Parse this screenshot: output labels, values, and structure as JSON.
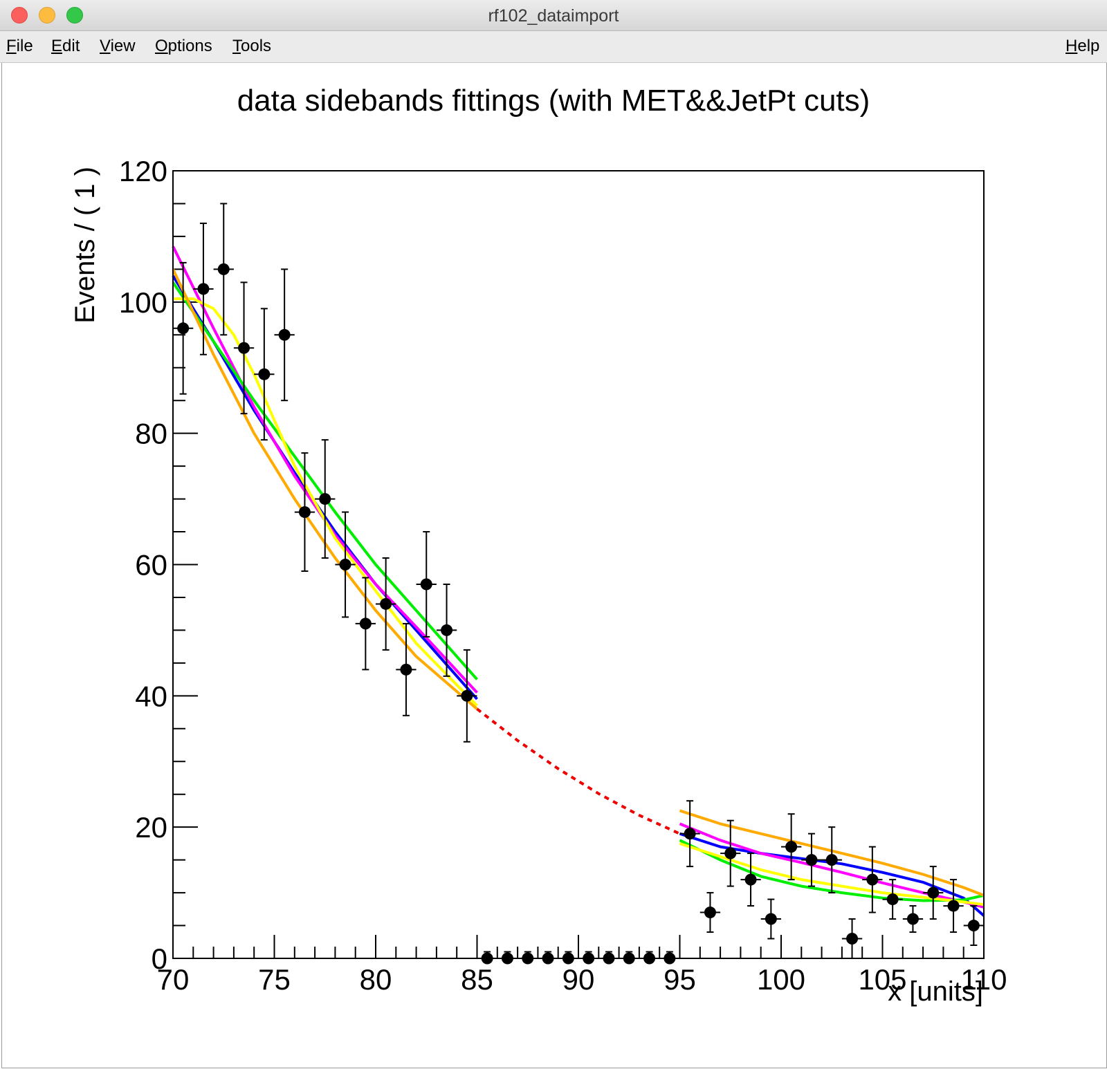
{
  "window": {
    "title": "rf102_dataimport"
  },
  "menu": {
    "file": "File",
    "edit": "Edit",
    "view": "View",
    "options": "Options",
    "tools": "Tools",
    "help": "Help"
  },
  "chart_data": {
    "type": "scatter",
    "title": "data sidebands fittings (with MET&&JetPt cuts)",
    "xlabel": "x [units]",
    "ylabel": "Events / ( 1 )",
    "xlim": [
      70,
      110
    ],
    "ylim": [
      0,
      120
    ],
    "x_ticks": [
      70,
      75,
      80,
      85,
      90,
      95,
      100,
      105,
      110
    ],
    "y_ticks": [
      0,
      20,
      40,
      60,
      80,
      100,
      120
    ],
    "grid": false,
    "data": {
      "x": [
        70.5,
        71.5,
        72.5,
        73.5,
        74.5,
        75.5,
        76.5,
        77.5,
        78.5,
        79.5,
        80.5,
        81.5,
        82.5,
        83.5,
        84.5,
        85.5,
        86.5,
        87.5,
        88.5,
        89.5,
        90.5,
        91.5,
        92.5,
        93.5,
        94.5,
        95.5,
        96.5,
        97.5,
        98.5,
        99.5,
        100.5,
        101.5,
        102.5,
        103.5,
        104.5,
        105.5,
        106.5,
        107.5,
        108.5,
        109.5
      ],
      "y": [
        96,
        102,
        105,
        93,
        89,
        95,
        68,
        70,
        60,
        51,
        54,
        44,
        57,
        50,
        40,
        0,
        0,
        0,
        0,
        0,
        0,
        0,
        0,
        0,
        0,
        19,
        7,
        16,
        12,
        6,
        17,
        15,
        15,
        3,
        12,
        9,
        6,
        10,
        8,
        5
      ],
      "yerr": [
        10,
        10,
        10,
        10,
        10,
        10,
        9,
        9,
        8,
        7,
        7,
        7,
        8,
        7,
        7,
        1,
        1,
        1,
        1,
        1,
        1,
        1,
        1,
        1,
        1,
        5,
        3,
        5,
        4,
        3,
        5,
        4,
        5,
        3,
        5,
        3,
        2,
        4,
        4,
        3
      ],
      "xerr": 0.5
    },
    "series": [
      {
        "color": "#0000ff",
        "left": {
          "x": [
            70,
            72,
            74,
            76,
            78,
            80,
            82,
            85
          ],
          "y": [
            104,
            94,
            83.5,
            74,
            65,
            57,
            50,
            39.5
          ]
        },
        "right": {
          "x": [
            95,
            97,
            99,
            101,
            103,
            105,
            107,
            109,
            110
          ],
          "y": [
            19,
            17,
            16,
            15.2,
            14.4,
            13.1,
            11.6,
            9.2,
            6.5
          ]
        }
      },
      {
        "color": "#ff00ff",
        "left": {
          "x": [
            70,
            72,
            74,
            76,
            78,
            80,
            82,
            85
          ],
          "y": [
            108.5,
            96,
            84,
            73.5,
            64.5,
            57,
            50.5,
            40.5
          ]
        },
        "right": {
          "x": [
            95,
            97,
            99,
            101,
            103,
            105,
            107,
            109,
            110
          ],
          "y": [
            20.5,
            18,
            16,
            14.6,
            13.1,
            11.5,
            10,
            8.6,
            7.8
          ]
        }
      },
      {
        "color": "#00ee00",
        "left": {
          "x": [
            70,
            72,
            74,
            76,
            78,
            80,
            82,
            85
          ],
          "y": [
            103,
            94,
            85,
            76.5,
            68,
            60,
            53,
            42.5
          ]
        },
        "right": {
          "x": [
            95,
            97,
            99,
            101,
            103,
            105,
            107,
            109,
            110
          ],
          "y": [
            18,
            15,
            12.5,
            11,
            10,
            9.2,
            8.8,
            8.9,
            9.6
          ]
        }
      },
      {
        "color": "#ffff00",
        "left": {
          "x": [
            70,
            71,
            72,
            73,
            74,
            75,
            76,
            78,
            80,
            82,
            85
          ],
          "y": [
            100.5,
            100.5,
            99,
            95,
            89,
            82,
            75,
            64,
            56,
            48,
            38.5
          ]
        },
        "right": {
          "x": [
            95,
            97,
            99,
            101,
            103,
            105,
            107,
            109,
            110
          ],
          "y": [
            17.5,
            15.5,
            13.5,
            12,
            11,
            10,
            9.3,
            8.6,
            8.2
          ]
        }
      },
      {
        "color": "#ffaa00",
        "left": {
          "x": [
            70,
            72,
            74,
            76,
            78,
            80,
            82,
            85
          ],
          "y": [
            105,
            92,
            80,
            70,
            61,
            53,
            46,
            38
          ]
        },
        "right": {
          "x": [
            95,
            97,
            99,
            101,
            103,
            105,
            107,
            109,
            110
          ],
          "y": [
            22.5,
            20.5,
            19,
            17.5,
            16,
            14.5,
            12.8,
            10.8,
            9.6
          ]
        }
      },
      {
        "color": "#ee0000",
        "dashed": true,
        "x": [
          85,
          87,
          89,
          91,
          93,
          95
        ],
        "y": [
          38,
          33.2,
          28.9,
          25.1,
          21.8,
          19
        ]
      }
    ]
  }
}
